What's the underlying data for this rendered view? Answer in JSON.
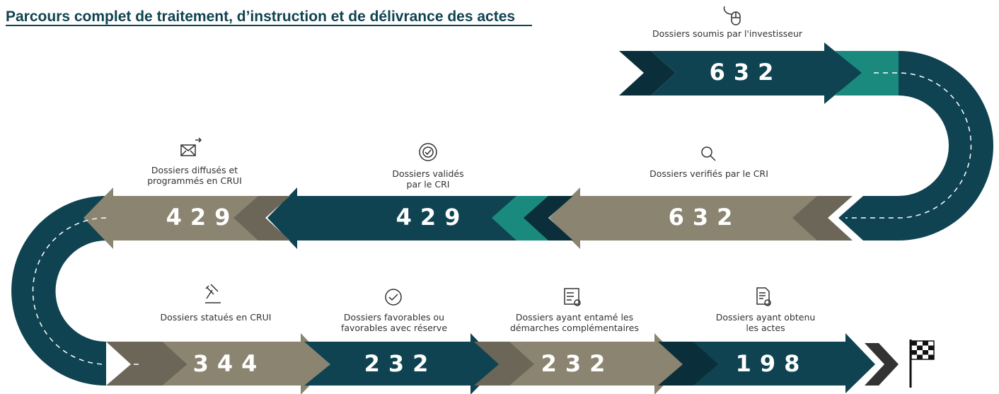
{
  "title": "Parcours complet de traitement, d’instruction et de délivrance des actes",
  "stages": [
    {
      "label": [
        "Dossiers soumis par l'investisseur"
      ],
      "value": 632
    },
    {
      "label": [
        "Dossiers verifiés par le CRI"
      ],
      "value": 632
    },
    {
      "label": [
        "Dossiers validés",
        "par le CRI"
      ],
      "value": 429
    },
    {
      "label": [
        "Dossiers diffusés et",
        "programmés en CRUI"
      ],
      "value": 429
    },
    {
      "label": [
        "Dossiers statués en CRUI"
      ],
      "value": 344
    },
    {
      "label": [
        "Dossiers favorables ou",
        "favorables avec réserve"
      ],
      "value": 232
    },
    {
      "label": [
        "Dossiers ayant entamé les",
        "démarches complémentaires"
      ],
      "value": 232
    },
    {
      "label": [
        "Dossiers ayant obtenu",
        "les actes"
      ],
      "value": 198
    }
  ]
}
